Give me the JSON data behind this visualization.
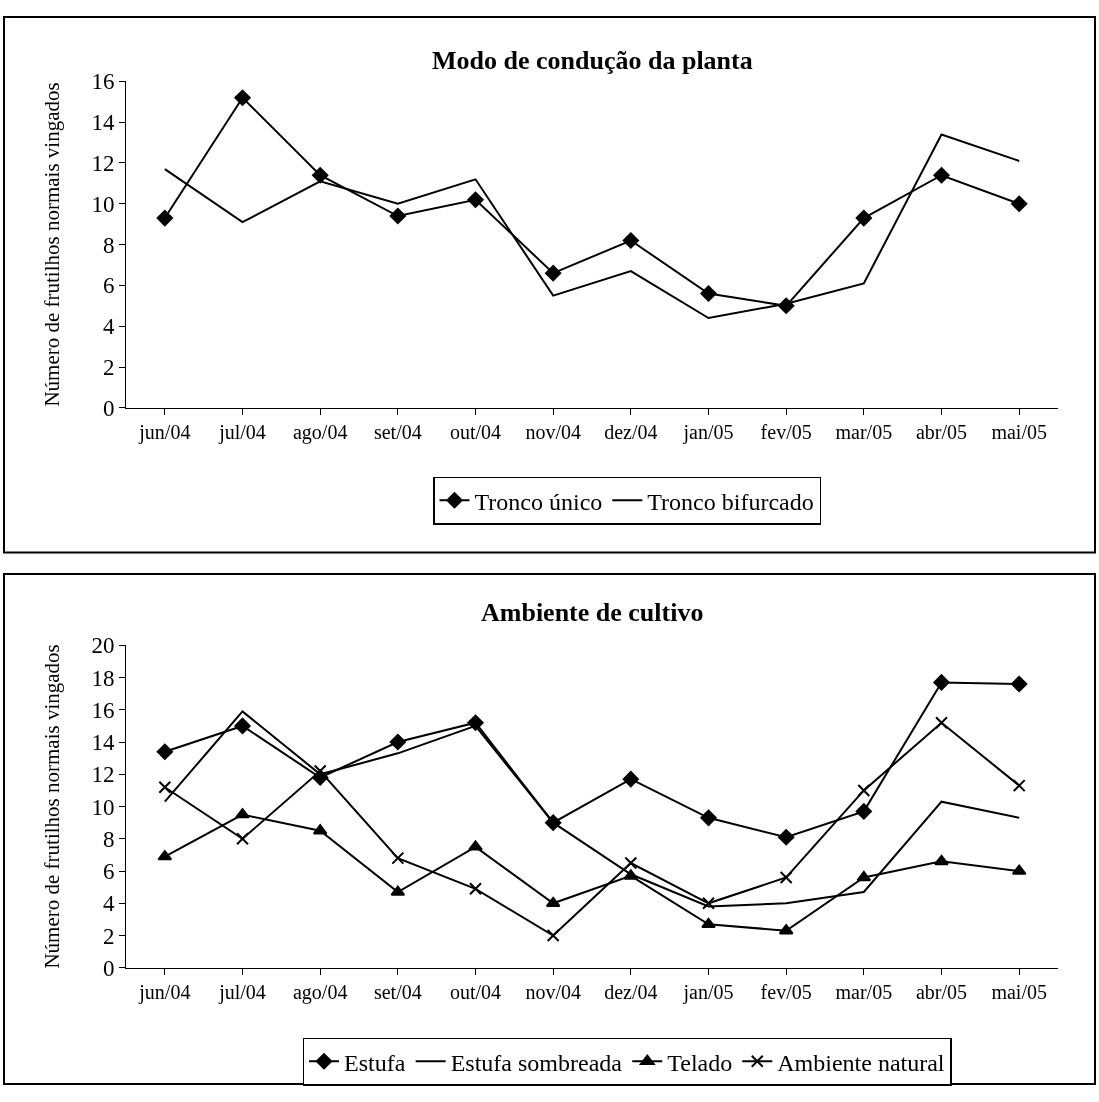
{
  "chart_data": [
    {
      "type": "line",
      "title": "Modo de condução da planta",
      "ylabel": "Número de frutilhos normais vingados",
      "categories": [
        "jun/04",
        "jul/04",
        "ago/04",
        "set/04",
        "out/04",
        "nov/04",
        "dez/04",
        "jan/05",
        "fev/05",
        "mar/05",
        "abr/05",
        "mai/05"
      ],
      "series": [
        {
          "name": "Tronco único",
          "color": "#000000",
          "marker": "diamond",
          "values": [
            9.3,
            15.2,
            11.4,
            9.4,
            10.2,
            6.6,
            8.2,
            5.6,
            5.0,
            9.3,
            11.4,
            10.0
          ]
        },
        {
          "name": "Tronco bifurcado",
          "color": "#000000",
          "marker": "none",
          "values": [
            11.7,
            9.1,
            11.1,
            10.0,
            11.2,
            5.5,
            6.7,
            4.4,
            5.1,
            6.1,
            13.4,
            12.1
          ]
        }
      ],
      "ylim": [
        0,
        16
      ],
      "yticks": [
        0,
        2,
        4,
        6,
        8,
        10,
        12,
        14,
        16
      ],
      "grid": false,
      "legend": "bottom"
    },
    {
      "type": "line",
      "title": "Ambiente de cultivo",
      "ylabel": "Número de frutilhos normais vingados",
      "categories": [
        "jun/04",
        "jul/04",
        "ago/04",
        "set/04",
        "out/04",
        "nov/04",
        "dez/04",
        "jan/05",
        "fev/05",
        "mar/05",
        "abr/05",
        "mai/05"
      ],
      "series": [
        {
          "name": "Estufa",
          "color": "#000000",
          "marker": "diamond",
          "values": [
            13.4,
            15.0,
            11.8,
            14.0,
            15.2,
            9.0,
            11.7,
            9.3,
            8.1,
            9.7,
            17.7,
            17.6
          ]
        },
        {
          "name": "Estufa sombreada",
          "color": "#000000",
          "marker": "none",
          "values": [
            10.3,
            15.9,
            12.0,
            13.3,
            15.0,
            9.0,
            5.8,
            3.8,
            4.0,
            4.7,
            10.3,
            9.3
          ]
        },
        {
          "name": "Telado",
          "color": "#000000",
          "marker": "triangle",
          "values": [
            6.9,
            9.5,
            8.5,
            4.7,
            7.5,
            4.0,
            5.7,
            2.7,
            2.3,
            5.6,
            6.6,
            6.0
          ]
        },
        {
          "name": "Ambiente natural",
          "color": "#000000",
          "marker": "cross",
          "values": [
            11.2,
            8.0,
            12.2,
            6.8,
            4.9,
            2.0,
            6.5,
            4.0,
            5.6,
            11.0,
            15.2,
            11.3
          ]
        }
      ],
      "ylim": [
        0,
        20
      ],
      "yticks": [
        0,
        2,
        4,
        6,
        8,
        10,
        12,
        14,
        16,
        18,
        20
      ],
      "grid": false,
      "legend": "bottom"
    }
  ]
}
